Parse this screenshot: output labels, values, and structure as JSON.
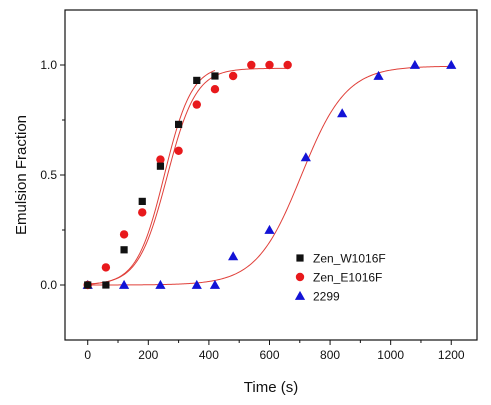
{
  "chart_data": {
    "type": "scatter",
    "title": "",
    "xlabel": "Time (s)",
    "ylabel": "Emulsion Fraction",
    "xlim": [
      -75,
      1285
    ],
    "ylim": [
      -0.25,
      1.25
    ],
    "x_ticks": [
      0,
      200,
      400,
      600,
      800,
      1000,
      1200
    ],
    "y_ticks": [
      0.0,
      0.5,
      1.0
    ],
    "x_tick_labels": [
      "0",
      "200",
      "400",
      "600",
      "800",
      "1000",
      "1200"
    ],
    "y_tick_labels": [
      "0.0",
      "0.5",
      "1.0"
    ],
    "grid": false,
    "legend_position": "center-right",
    "fit_color": "#e0403a",
    "series": [
      {
        "name": "Zen_W1016F",
        "marker": "square",
        "color": "#111111",
        "x": [
          0,
          60,
          120,
          180,
          240,
          300,
          360,
          420
        ],
        "y": [
          0.0,
          0.0,
          0.16,
          0.38,
          0.54,
          0.73,
          0.93,
          0.95
        ],
        "fit": {
          "x0": 253,
          "k": 0.022,
          "max": 1.0
        }
      },
      {
        "name": "Zen_E1016F",
        "marker": "circle",
        "color": "#e8191c",
        "x": [
          0,
          60,
          120,
          180,
          240,
          300,
          360,
          420,
          480,
          540,
          600,
          660
        ],
        "y": [
          0.0,
          0.08,
          0.23,
          0.33,
          0.57,
          0.61,
          0.82,
          0.89,
          0.95,
          1.0,
          1.0,
          1.0
        ],
        "fit": {
          "x0": 262,
          "k": 0.021,
          "max": 0.985
        }
      },
      {
        "name": "2299",
        "marker": "triangle",
        "color": "#1313d6",
        "x": [
          0,
          120,
          240,
          360,
          420,
          480,
          600,
          720,
          840,
          960,
          1080,
          1200
        ],
        "y": [
          0.0,
          0.0,
          0.0,
          0.0,
          0.0,
          0.13,
          0.25,
          0.58,
          0.78,
          0.95,
          1.0,
          1.0
        ],
        "fit": {
          "x0": 705,
          "k": 0.0135,
          "max": 0.995
        }
      }
    ]
  }
}
